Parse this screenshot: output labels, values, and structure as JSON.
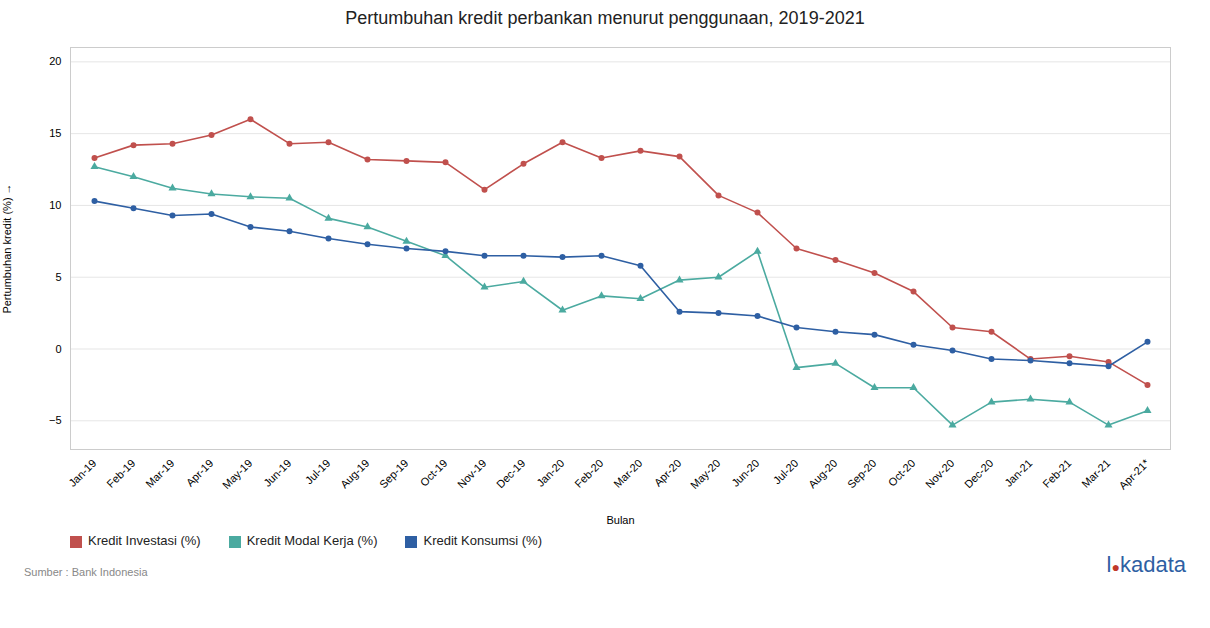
{
  "chart_data": {
    "type": "line",
    "title": "Pertumbuhan kredit perbankan menurut penggunaan, 2019-2021",
    "x_label": "Bulan",
    "y_label": "Pertumbuhan kredit (%)",
    "annotations": [
      "Sumber : Bank Indonesia",
      "l●kadata"
    ],
    "categories": [
      "Jan-19",
      "Feb-19",
      "Mar-19",
      "Apr-19",
      "May-19",
      "Jun-19",
      "Jul-19",
      "Aug-19",
      "Sep-19",
      "Oct-19",
      "Nov-19",
      "Dec-19",
      "Jan-20",
      "Feb-20",
      "Mar-20",
      "Apr-20",
      "May-20",
      "Jun-20",
      "Jul-20",
      "Aug-20",
      "Sep-20",
      "Oct-20",
      "Nov-20",
      "Dec-20",
      "Jan-21",
      "Feb-21",
      "Mar-21",
      "Apr-21*"
    ],
    "series": [
      {
        "name": "Kredit Investasi (%)",
        "color": "#c0504d",
        "marker": "circle",
        "values": [
          13.3,
          14.2,
          14.3,
          14.9,
          16.0,
          14.3,
          14.4,
          13.2,
          13.1,
          13.0,
          11.1,
          12.9,
          14.4,
          13.3,
          13.8,
          13.4,
          10.7,
          9.5,
          7.0,
          6.2,
          5.3,
          4.0,
          1.5,
          1.2,
          -0.7,
          -0.5,
          -0.9,
          -2.5
        ]
      },
      {
        "name": "Kredit Modal Kerja (%)",
        "color": "#4baaa0",
        "marker": "triangle",
        "values": [
          12.7,
          12.0,
          11.2,
          10.8,
          10.6,
          10.5,
          9.1,
          8.5,
          7.5,
          6.5,
          4.3,
          4.7,
          2.7,
          3.7,
          3.5,
          4.8,
          5.0,
          6.8,
          -1.3,
          -1.0,
          -2.7,
          -2.7,
          -5.3,
          -3.7,
          -3.5,
          -3.7,
          -5.3,
          -4.3
        ]
      },
      {
        "name": "Kredit Konsumsi (%)",
        "color": "#2e5fa3",
        "marker": "circle",
        "values": [
          10.3,
          9.8,
          9.3,
          9.4,
          8.5,
          8.2,
          7.7,
          7.3,
          7.0,
          6.8,
          6.5,
          6.5,
          6.4,
          6.5,
          5.8,
          2.6,
          2.5,
          2.3,
          1.5,
          1.2,
          1.0,
          0.3,
          -0.1,
          -0.7,
          -0.8,
          -1.0,
          -1.2,
          0.5
        ]
      }
    ],
    "ylim": [
      -7,
      21
    ],
    "yticks": [
      -5,
      0,
      5,
      10,
      15,
      20
    ],
    "grid": true,
    "legend": "bottom"
  }
}
